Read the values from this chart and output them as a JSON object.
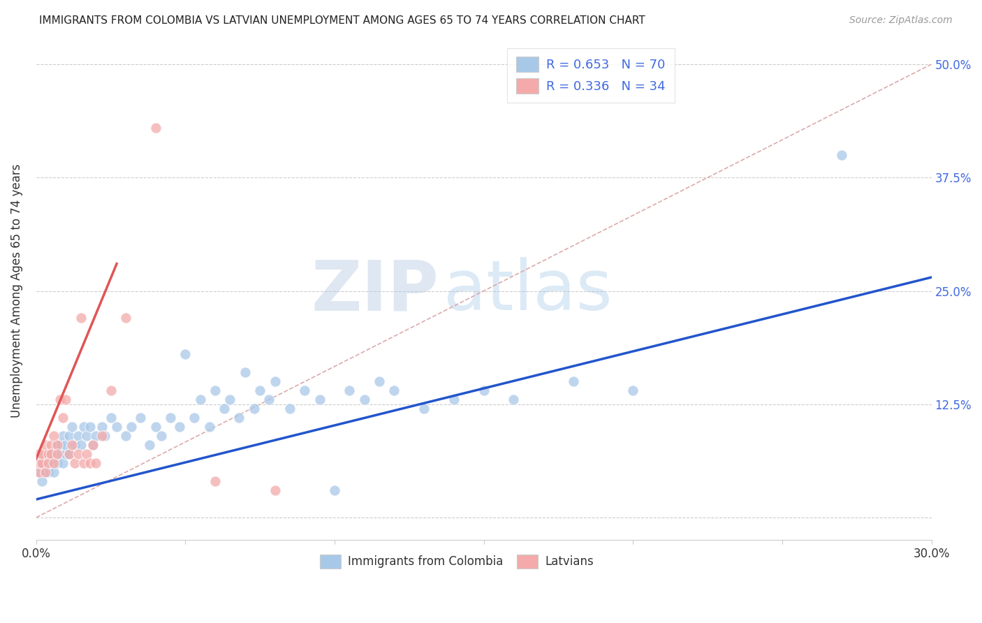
{
  "title": "IMMIGRANTS FROM COLOMBIA VS LATVIAN UNEMPLOYMENT AMONG AGES 65 TO 74 YEARS CORRELATION CHART",
  "source": "Source: ZipAtlas.com",
  "ylabel": "Unemployment Among Ages 65 to 74 years",
  "xlim": [
    0.0,
    0.3
  ],
  "ylim": [
    -0.025,
    0.525
  ],
  "xticks": [
    0.0,
    0.05,
    0.1,
    0.15,
    0.2,
    0.25,
    0.3
  ],
  "xticklabels": [
    "0.0%",
    "",
    "",
    "",
    "",
    "",
    "30.0%"
  ],
  "ytick_positions": [
    0.0,
    0.125,
    0.25,
    0.375,
    0.5
  ],
  "yticklabels": [
    "",
    "12.5%",
    "25.0%",
    "37.5%",
    "50.0%"
  ],
  "blue_color": "#A8C8E8",
  "pink_color": "#F4AAAA",
  "blue_line_color": "#2255CC",
  "pink_line_color": "#E05555",
  "dashed_line_color": "#DDAAAA",
  "legend_r1": "R = 0.653",
  "legend_n1": "N = 70",
  "legend_r2": "R = 0.336",
  "legend_n2": "N = 34",
  "watermark_zip": "ZIP",
  "watermark_atlas": "atlas",
  "blue_scatter_x": [
    0.001,
    0.002,
    0.002,
    0.003,
    0.003,
    0.004,
    0.004,
    0.005,
    0.005,
    0.006,
    0.006,
    0.007,
    0.007,
    0.008,
    0.008,
    0.009,
    0.009,
    0.01,
    0.01,
    0.011,
    0.011,
    0.012,
    0.013,
    0.014,
    0.015,
    0.016,
    0.017,
    0.018,
    0.019,
    0.02,
    0.022,
    0.023,
    0.025,
    0.027,
    0.03,
    0.032,
    0.035,
    0.038,
    0.04,
    0.042,
    0.045,
    0.048,
    0.05,
    0.053,
    0.055,
    0.058,
    0.06,
    0.063,
    0.065,
    0.068,
    0.07,
    0.073,
    0.075,
    0.078,
    0.08,
    0.085,
    0.09,
    0.095,
    0.1,
    0.105,
    0.11,
    0.115,
    0.12,
    0.13,
    0.14,
    0.15,
    0.16,
    0.18,
    0.2,
    0.27
  ],
  "blue_scatter_y": [
    0.05,
    0.04,
    0.06,
    0.05,
    0.07,
    0.06,
    0.05,
    0.07,
    0.06,
    0.07,
    0.05,
    0.08,
    0.06,
    0.07,
    0.08,
    0.06,
    0.09,
    0.07,
    0.08,
    0.09,
    0.07,
    0.1,
    0.08,
    0.09,
    0.08,
    0.1,
    0.09,
    0.1,
    0.08,
    0.09,
    0.1,
    0.09,
    0.11,
    0.1,
    0.09,
    0.1,
    0.11,
    0.08,
    0.1,
    0.09,
    0.11,
    0.1,
    0.18,
    0.11,
    0.13,
    0.1,
    0.14,
    0.12,
    0.13,
    0.11,
    0.16,
    0.12,
    0.14,
    0.13,
    0.15,
    0.12,
    0.14,
    0.13,
    0.03,
    0.14,
    0.13,
    0.15,
    0.14,
    0.12,
    0.13,
    0.14,
    0.13,
    0.15,
    0.14,
    0.4
  ],
  "pink_scatter_x": [
    0.001,
    0.001,
    0.001,
    0.002,
    0.002,
    0.003,
    0.003,
    0.004,
    0.004,
    0.005,
    0.005,
    0.006,
    0.006,
    0.007,
    0.007,
    0.008,
    0.009,
    0.01,
    0.011,
    0.012,
    0.013,
    0.014,
    0.015,
    0.016,
    0.017,
    0.018,
    0.019,
    0.02,
    0.022,
    0.025,
    0.03,
    0.04,
    0.06,
    0.08
  ],
  "pink_scatter_y": [
    0.05,
    0.06,
    0.07,
    0.06,
    0.07,
    0.05,
    0.08,
    0.07,
    0.06,
    0.08,
    0.07,
    0.06,
    0.09,
    0.08,
    0.07,
    0.13,
    0.11,
    0.13,
    0.07,
    0.08,
    0.06,
    0.07,
    0.22,
    0.06,
    0.07,
    0.06,
    0.08,
    0.06,
    0.09,
    0.14,
    0.22,
    0.43,
    0.04,
    0.03
  ],
  "blue_trend_x": [
    0.0,
    0.3
  ],
  "blue_trend_y": [
    0.02,
    0.265
  ],
  "pink_trend_x": [
    0.0,
    0.027
  ],
  "pink_trend_y": [
    0.065,
    0.28
  ]
}
